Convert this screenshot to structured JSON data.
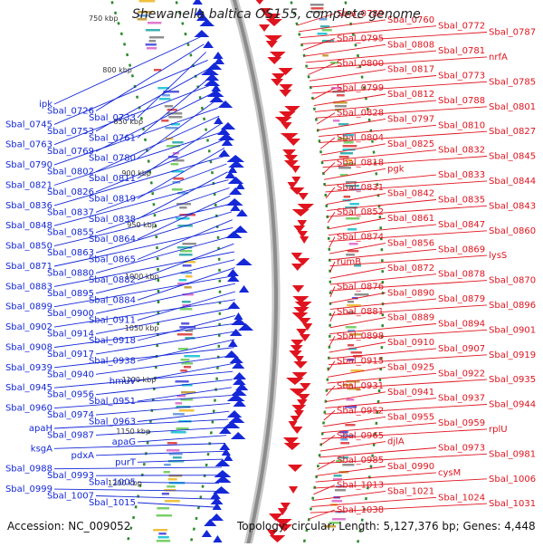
{
  "title": "Shewanella baltica OS155, complete genome",
  "footer": {
    "accession": "Accession: NC_009052",
    "summary": "Topology: circular; Length: 5,127,376 bp; Genes: 4,448"
  },
  "colors": {
    "forward_strand": "#e0141e",
    "reverse_strand": "#1428d8",
    "backbone": "#8c8c8c",
    "tick_marks": "#2a8a2a"
  },
  "kbp_ticks": [
    "750 kbp",
    "800 kbp",
    "850 kbp",
    "900 kbp",
    "950 kbp",
    "1000 kbp",
    "1050 kbp",
    "1100 kbp",
    "1150 kbp",
    "1200 kbp"
  ],
  "labels_left": [
    "ipk",
    "Sbal_0726",
    "Sbal_0733",
    "Sbal_0745",
    "Sbal_0753",
    "Sbal_0761",
    "Sbal_0763",
    "Sbal_0769",
    "Sbal_0780",
    "Sbal_0790",
    "Sbal_0802",
    "Sbal_0811",
    "Sbal_0821",
    "Sbal_0826",
    "Sbal_0819",
    "Sbal_0836",
    "Sbal_0837",
    "Sbal_0838",
    "Sbal_0848",
    "Sbal_0855",
    "Sbal_0864",
    "Sbal_0850",
    "Sbal_0863",
    "Sbal_0865",
    "Sbal_0871",
    "Sbal_0880",
    "Sbal_0882",
    "Sbal_0883",
    "Sbal_0895",
    "Sbal_0884",
    "Sbal_0899",
    "Sbal_0900",
    "Sbal_0911",
    "Sbal_0902",
    "Sbal_0914",
    "Sbal_0918",
    "Sbal_0908",
    "Sbal_0917",
    "Sbal_0938",
    "Sbal_0939",
    "Sbal_0940",
    "hmuV",
    "Sbal_0945",
    "Sbal_0956",
    "Sbal_0951",
    "Sbal_0960",
    "Sbal_0974",
    "Sbal_0963",
    "apaH",
    "Sbal_0987",
    "apaG",
    "ksgA",
    "pdxA",
    "purT",
    "Sbal_0988",
    "Sbal_0993",
    "Sbal_1005",
    "Sbal_0999",
    "Sbal_1007",
    "Sbal_1015"
  ],
  "labels_right": [
    "Sbal_0789",
    "Sbal_0760",
    "Sbal_0772",
    "Sbal_0787",
    "Sbal_0795",
    "Sbal_0808",
    "Sbal_0781",
    "nrfA",
    "Sbal_0800",
    "Sbal_0817",
    "Sbal_0773",
    "Sbal_0785",
    "Sbal_0799",
    "Sbal_0812",
    "Sbal_0788",
    "Sbal_0801",
    "Sbal_0828",
    "Sbal_0797",
    "Sbal_0810",
    "Sbal_0827",
    "Sbal_0804",
    "Sbal_0825",
    "Sbal_0832",
    "Sbal_0845",
    "Sbal_0818",
    "pgk",
    "Sbal_0833",
    "Sbal_0844",
    "Sbal_0831",
    "Sbal_0842",
    "Sbal_0835",
    "Sbal_0843",
    "Sbal_0852",
    "Sbal_0861",
    "Sbal_0847",
    "Sbal_0860",
    "Sbal_0874",
    "Sbal_0856",
    "Sbal_0869",
    "lysS",
    "rumB",
    "Sbal_0872",
    "Sbal_0878",
    "Sbal_0870",
    "Sbal_0876",
    "Sbal_0890",
    "Sbal_0879",
    "Sbal_0896",
    "Sbal_0881",
    "Sbal_0889",
    "Sbal_0894",
    "Sbal_0901",
    "Sbal_0898",
    "Sbal_0910",
    "Sbal_0907",
    "Sbal_0919",
    "Sbal_0915",
    "Sbal_0925",
    "Sbal_0922",
    "Sbal_0935",
    "Sbal_0931",
    "Sbal_0941",
    "Sbal_0937",
    "Sbal_0944",
    "Sbal_0952",
    "Sbal_0955",
    "Sbal_0959",
    "rplU",
    "Sbal_0965",
    "djlA",
    "Sbal_0973",
    "Sbal_0981",
    "Sbal_0985",
    "Sbal_0990",
    "cysM",
    "Sbal_1006",
    "Sbal_1013",
    "Sbal_1021",
    "Sbal_1024",
    "Sbal_1031",
    "Sbal_1038"
  ]
}
